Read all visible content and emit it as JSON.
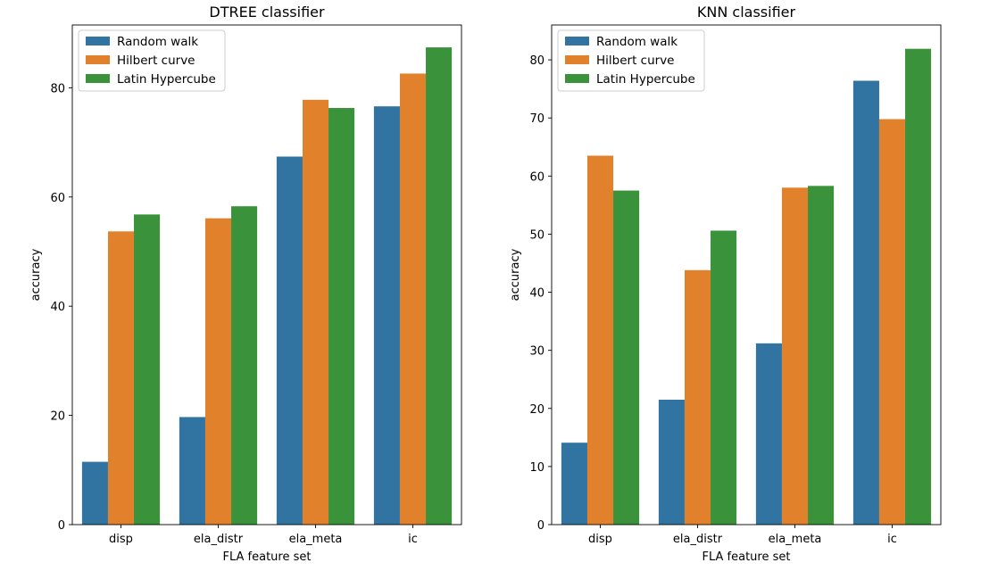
{
  "chart_data": [
    {
      "type": "bar",
      "title": "DTREE classifier",
      "xlabel": "FLA feature set",
      "ylabel": "accuracy",
      "categories": [
        "disp",
        "ela_distr",
        "ela_meta",
        "ic"
      ],
      "ylim": [
        0,
        91.5
      ],
      "yticks": [
        0,
        20,
        40,
        60,
        80
      ],
      "legend_position": "top-left",
      "grid": false,
      "series": [
        {
          "name": "Random walk",
          "color": "#3274a1",
          "values": [
            11.5,
            19.7,
            67.4,
            76.6
          ]
        },
        {
          "name": "Hilbert curve",
          "color": "#e1812c",
          "values": [
            53.7,
            56.1,
            77.8,
            82.6
          ]
        },
        {
          "name": "Latin Hypercube",
          "color": "#3a923a",
          "values": [
            56.8,
            58.3,
            76.3,
            87.4
          ]
        }
      ]
    },
    {
      "type": "bar",
      "title": "KNN classifier",
      "xlabel": "FLA feature set",
      "ylabel": "accuracy",
      "categories": [
        "disp",
        "ela_distr",
        "ela_meta",
        "ic"
      ],
      "ylim": [
        0,
        86
      ],
      "yticks": [
        0,
        10,
        20,
        30,
        40,
        50,
        60,
        70,
        80
      ],
      "legend_position": "top-left",
      "grid": false,
      "series": [
        {
          "name": "Random walk",
          "color": "#3274a1",
          "values": [
            14.1,
            21.5,
            31.2,
            76.4
          ]
        },
        {
          "name": "Hilbert curve",
          "color": "#e1812c",
          "values": [
            63.5,
            43.8,
            58.0,
            69.8
          ]
        },
        {
          "name": "Latin Hypercube",
          "color": "#3a923a",
          "values": [
            57.5,
            50.6,
            58.3,
            81.9
          ]
        }
      ]
    }
  ]
}
